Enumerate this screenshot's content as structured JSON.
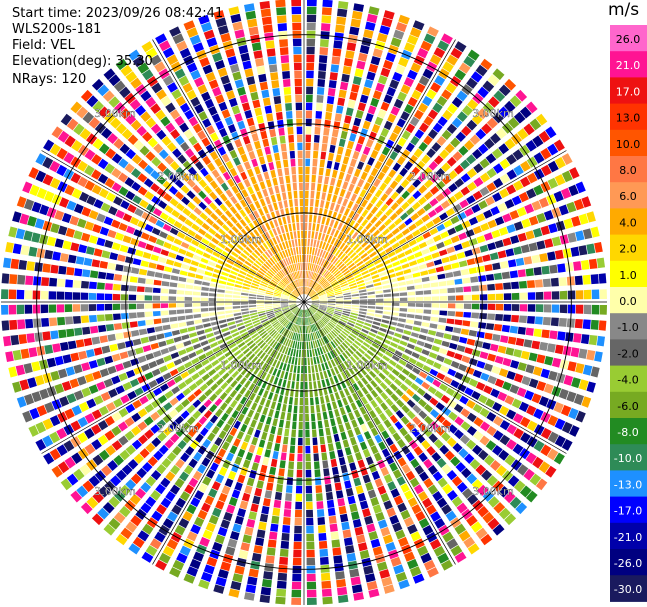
{
  "header": {
    "start_time": "Start time: 2023/09/26 08:42:41",
    "instrument": "WLS200s-181",
    "field": "Field: VEL",
    "elevation": "Elevation(deg): 35.30",
    "nrays": "NRays: 120"
  },
  "chart_data": {
    "type": "heatmap",
    "projection": "polar (PPI)",
    "field": "VEL",
    "n_rays": 120,
    "elevation_deg": 35.3,
    "range_rings_km": [
      1,
      2,
      3
    ],
    "ring_labels": [
      "1.00km",
      "2.00km",
      "3.00km"
    ],
    "max_range_km": 3.4,
    "colorbar": {
      "unit": "m/s",
      "ticks": [
        "26.0",
        "21.0",
        "17.0",
        "13.0",
        "10.0",
        "8.0",
        "6.0",
        "4.0",
        "2.0",
        "1.0",
        "0.0",
        "-1.0",
        "-2.0",
        "-4.0",
        "-6.0",
        "-8.0",
        "-10.0",
        "-13.0",
        "-17.0",
        "-21.0",
        "-26.0",
        "-30.0"
      ],
      "colors": [
        "#ff66cc",
        "#ff1493",
        "#ee1111",
        "#ff3300",
        "#ff5500",
        "#ff7744",
        "#ff9955",
        "#ffaa00",
        "#ffd700",
        "#ffff00",
        "#ffffaa",
        "#888888",
        "#666666",
        "#99cc33",
        "#77aa22",
        "#228b22",
        "#2e8b57",
        "#1e90ff",
        "#0000ff",
        "#0000aa",
        "#000080",
        "#1a1a5e"
      ]
    },
    "pattern": {
      "near_range_km": 1.8,
      "north_sector": "positive (yellow/orange, 2 to 8 m/s)",
      "south_sector": "negative (green, -2 to -8 m/s)",
      "east_west_axis": "near zero (grey)",
      "beyond_near_range": "noisy, all colours"
    }
  }
}
